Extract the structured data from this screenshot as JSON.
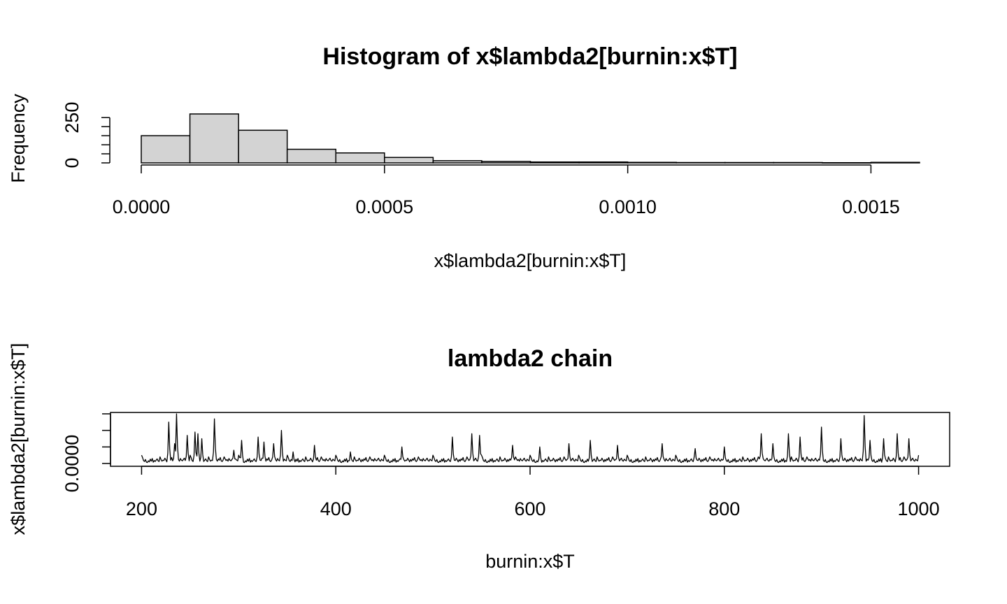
{
  "chart_data": [
    {
      "type": "bar",
      "title": "Histogram of x$lambda2[burnin:x$T]",
      "xlabel": "x$lambda2[burnin:x$T]",
      "ylabel": "Frequency",
      "bin_edges": [
        0.0,
        0.0001,
        0.0002,
        0.0003,
        0.0004,
        0.0005,
        0.0006,
        0.0007,
        0.0008,
        0.0009,
        0.001,
        0.0011,
        0.0012,
        0.0013,
        0.0014,
        0.0015,
        0.0016
      ],
      "values": [
        150,
        270,
        180,
        75,
        55,
        30,
        12,
        8,
        5,
        5,
        3,
        2,
        2,
        2,
        1,
        3
      ],
      "xticks": [
        "0.0000",
        "0.0005",
        "0.0010",
        "0.0015"
      ],
      "xtick_values": [
        0.0,
        0.0005,
        0.001,
        0.0015
      ],
      "yticks": [
        "0",
        "250"
      ],
      "ytick_values": [
        0,
        250
      ],
      "xlim": [
        0.0,
        0.0016
      ],
      "ylim": [
        0,
        270
      ]
    },
    {
      "type": "line",
      "title": "lambda2 chain",
      "xlabel": "burnin:x$T",
      "ylabel": "x$lambda2[burnin:x$T]",
      "x_start": 200,
      "x_end": 1000,
      "y": [
        0.00025,
        0.00018,
        9e-05,
        6e-05,
        0.00012,
        4e-05,
        3e-05,
        8e-05,
        5e-05,
        0.00013,
        7e-05,
        0.00015,
        4e-05,
        9e-05,
        6e-05,
        0.0001,
        0.00014,
        8e-05,
        6e-05,
        0.0002,
        0.00012,
        7e-05,
        0.0001,
        9e-05,
        0.00016,
        0.00011,
        5e-05,
        0.00012,
        7e-05,
        0.00014,
        0.0001,
        0.00018,
        8e-05,
        6e-05,
        0.00011,
        0.0002,
        0.00014,
        9e-05,
        0.00012,
        7e-05,
        0.00015,
        0.0001,
        8e-05,
        0.00012,
        0.00016,
        9e-05,
        7e-05,
        0.00013,
        0.0001,
        8e-05
      ],
      "peaks": [
        {
          "x": 228,
          "y": 0.00125
        },
        {
          "x": 234,
          "y": 0.0006
        },
        {
          "x": 236,
          "y": 0.0015
        },
        {
          "x": 247,
          "y": 0.00085
        },
        {
          "x": 255,
          "y": 0.00095
        },
        {
          "x": 258,
          "y": 0.0009
        },
        {
          "x": 262,
          "y": 0.00075
        },
        {
          "x": 275,
          "y": 0.00135
        },
        {
          "x": 295,
          "y": 0.0004
        },
        {
          "x": 303,
          "y": 0.0007
        },
        {
          "x": 320,
          "y": 0.0008
        },
        {
          "x": 326,
          "y": 0.00065
        },
        {
          "x": 336,
          "y": 0.0006
        },
        {
          "x": 344,
          "y": 0.001
        },
        {
          "x": 356,
          "y": 0.00035
        },
        {
          "x": 378,
          "y": 0.00055
        },
        {
          "x": 415,
          "y": 0.00035
        },
        {
          "x": 468,
          "y": 0.0005
        },
        {
          "x": 520,
          "y": 0.0008
        },
        {
          "x": 540,
          "y": 0.0009
        },
        {
          "x": 548,
          "y": 0.00085
        },
        {
          "x": 582,
          "y": 0.00055
        },
        {
          "x": 610,
          "y": 0.0005
        },
        {
          "x": 640,
          "y": 0.0006
        },
        {
          "x": 662,
          "y": 0.0007
        },
        {
          "x": 690,
          "y": 0.00055
        },
        {
          "x": 736,
          "y": 0.0006
        },
        {
          "x": 770,
          "y": 0.00045
        },
        {
          "x": 800,
          "y": 0.0005
        },
        {
          "x": 838,
          "y": 0.0009
        },
        {
          "x": 850,
          "y": 0.0006
        },
        {
          "x": 866,
          "y": 0.0009
        },
        {
          "x": 878,
          "y": 0.0008
        },
        {
          "x": 900,
          "y": 0.0011
        },
        {
          "x": 920,
          "y": 0.00075
        },
        {
          "x": 944,
          "y": 0.00145
        },
        {
          "x": 950,
          "y": 0.0007
        },
        {
          "x": 964,
          "y": 0.00075
        },
        {
          "x": 978,
          "y": 0.0009
        },
        {
          "x": 990,
          "y": 0.00075
        }
      ],
      "xticks": [
        "200",
        "400",
        "600",
        "800",
        "1000"
      ],
      "xtick_values": [
        200,
        400,
        600,
        800,
        1000
      ],
      "yticks": [
        "0.0000"
      ],
      "ytick_values": [
        0.0
      ],
      "xlim": [
        168,
        1032
      ],
      "ylim": [
        0.0,
        0.0015
      ],
      "box": true
    }
  ]
}
